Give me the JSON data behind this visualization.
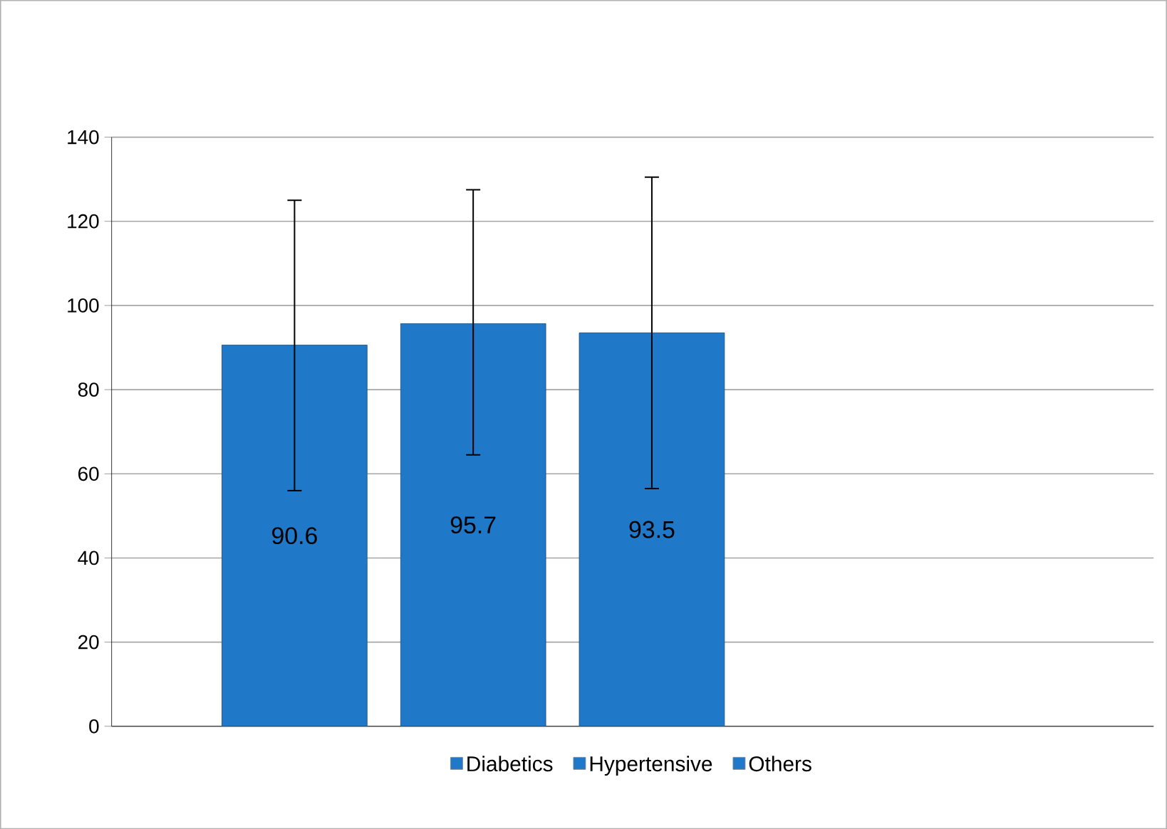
{
  "chart_data": {
    "type": "bar",
    "categories": [
      null
    ],
    "series": [
      {
        "name": "Diabetics",
        "color": "#1f78c8",
        "values": [
          90.6
        ],
        "errors": [
          [
            56,
            125
          ]
        ]
      },
      {
        "name": "Hypertensive",
        "color": "#1f78c8",
        "values": [
          95.7
        ],
        "errors": [
          [
            64.5,
            127.5
          ]
        ]
      },
      {
        "name": "Others",
        "color": "#1f78c8",
        "values": [
          93.5
        ],
        "errors": [
          [
            56.5,
            130.5
          ]
        ]
      }
    ],
    "ylim": [
      0,
      140
    ],
    "yticks": [
      0,
      20,
      40,
      60,
      80,
      100,
      120,
      140
    ],
    "grid": "y",
    "legend": "bottom",
    "data_labels": true
  }
}
